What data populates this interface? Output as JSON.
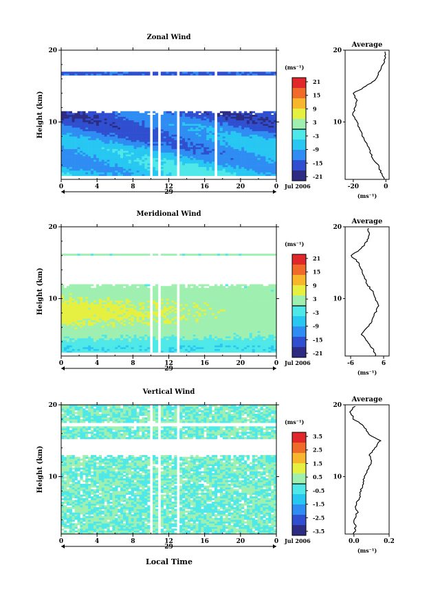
{
  "panels": [
    {
      "title": "Zonal Wind",
      "ylabel": "Height (km)",
      "ytick_labels": [
        "20",
        "10"
      ],
      "xtick_labels": [
        "0",
        "4",
        "8",
        "12",
        "16",
        "20",
        "0"
      ],
      "day_label": "29",
      "date_label": "Jul 2006",
      "unit_label": "(ms⁻¹)",
      "colorbar_ticks": [
        "21",
        "15",
        "9",
        "3",
        "-3",
        "-9",
        "-15",
        "-21"
      ],
      "avg_title": "Average",
      "avg_ytick_labels": [
        "20",
        "10"
      ],
      "avg_xtick_labels": [
        "-20",
        "0"
      ],
      "avg_unit": "(ms⁻¹)"
    },
    {
      "title": "Meridional Wind",
      "ylabel": "Height (km)",
      "ytick_labels": [
        "20",
        "10"
      ],
      "xtick_labels": [
        "0",
        "4",
        "8",
        "12",
        "16",
        "20",
        "0"
      ],
      "day_label": "29",
      "date_label": "Jul 2006",
      "unit_label": "(ms⁻¹)",
      "colorbar_ticks": [
        "21",
        "15",
        "9",
        "3",
        "-3",
        "-9",
        "-15",
        "-21"
      ],
      "avg_title": "Average",
      "avg_ytick_labels": [
        "20",
        "10"
      ],
      "avg_xtick_labels": [
        "-6",
        "6"
      ],
      "avg_unit": "(ms⁻¹)"
    },
    {
      "title": "Vertical Wind",
      "ylabel": "Height (km)",
      "ytick_labels": [
        "20",
        "10"
      ],
      "xtick_labels": [
        "0",
        "4",
        "8",
        "12",
        "16",
        "20",
        "0"
      ],
      "day_label": "29",
      "date_label": "Jul 2006",
      "unit_label": "(ms⁻¹)",
      "colorbar_ticks": [
        "3.5",
        "2.5",
        "1.5",
        "0.5",
        "-0.5",
        "-1.5",
        "-2.5",
        "-3.5"
      ],
      "avg_title": "Average",
      "avg_ytick_labels": [
        "20",
        "10"
      ],
      "avg_xtick_labels": [
        "0.0",
        "0.2"
      ],
      "avg_unit": "(ms⁻¹)"
    }
  ],
  "xlabel": "Local Time",
  "colors": {
    "scale": [
      "#2c2c82",
      "#2f4fd0",
      "#2f8cf2",
      "#27c7f2",
      "#4fe8e8",
      "#9ff0b0",
      "#e6f040",
      "#f7b62c",
      "#f06a2a",
      "#e0282a"
    ]
  },
  "chart_data": [
    {
      "type": "heatmap",
      "title": "Zonal Wind",
      "xlabel": "",
      "ylabel": "Height (km)",
      "x_unit": "local time (h)",
      "xlim": [
        0,
        24
      ],
      "ylim": [
        2,
        20
      ],
      "colorbar_range": [
        -21,
        21
      ],
      "data_gaps_hours": [
        [
          9.8,
          10.3
        ],
        [
          10.9,
          11.1
        ],
        [
          12.8,
          13.1
        ],
        [
          17.0,
          17.3
        ]
      ],
      "profile_heights_km": [
        [
          2.5,
          11.5
        ],
        [
          16.5,
          16.9
        ]
      ],
      "average_profile": {
        "xlim": [
          -25,
          2
        ],
        "heights": [
          2,
          3,
          4,
          5,
          6,
          7,
          8,
          9,
          10,
          11,
          12,
          13,
          14,
          15,
          16,
          17,
          18,
          19,
          20
        ],
        "values": [
          -1,
          -3,
          -5,
          -8,
          -10,
          -12,
          -14,
          -16,
          -18,
          -20,
          -19,
          -18,
          -20,
          -12,
          -6,
          -4,
          -2,
          0,
          -1
        ]
      }
    },
    {
      "type": "heatmap",
      "title": "Meridional Wind",
      "xlabel": "",
      "ylabel": "Height (km)",
      "x_unit": "local time (h)",
      "xlim": [
        0,
        24
      ],
      "ylim": [
        2,
        20
      ],
      "colorbar_range": [
        -21,
        21
      ],
      "data_gaps_hours": [
        [
          9.8,
          10.3
        ],
        [
          10.9,
          11.1
        ],
        [
          12.8,
          13.1
        ]
      ],
      "profile_heights_km": [
        [
          2.5,
          12.0
        ],
        [
          15.8,
          16.2
        ]
      ],
      "average_profile": {
        "xlim": [
          -8,
          8
        ],
        "heights": [
          2,
          3,
          4,
          5,
          6,
          7,
          8,
          9,
          10,
          11,
          12,
          13,
          14,
          15,
          16,
          17,
          18,
          19,
          20
        ],
        "values": [
          3,
          2,
          0,
          -2,
          0,
          2,
          3,
          4,
          3,
          2,
          0,
          -1,
          -2,
          -3,
          -6,
          -2,
          0,
          1,
          0
        ]
      }
    },
    {
      "type": "heatmap",
      "title": "Vertical Wind",
      "xlabel": "Local Time",
      "ylabel": "Height (km)",
      "x_unit": "local time (h)",
      "xlim": [
        0,
        24
      ],
      "ylim": [
        2,
        20
      ],
      "colorbar_range": [
        -3.5,
        3.5
      ],
      "data_gaps_hours": [
        [
          9.8,
          10.3
        ],
        [
          10.9,
          11.1
        ],
        [
          12.8,
          13.1
        ]
      ],
      "profile_heights_km": [
        [
          2.0,
          13.0
        ],
        [
          15.2,
          16.8
        ],
        [
          17.4,
          20.0
        ]
      ],
      "average_profile": {
        "xlim": [
          -0.05,
          0.2
        ],
        "heights": [
          2,
          3,
          4,
          5,
          6,
          7,
          8,
          9,
          10,
          11,
          12,
          13,
          14,
          15,
          16,
          17,
          18,
          19,
          20
        ],
        "values": [
          0.0,
          0.01,
          0.0,
          0.02,
          0.01,
          0.03,
          0.04,
          0.05,
          0.06,
          0.08,
          0.1,
          0.09,
          0.12,
          0.15,
          0.08,
          0.06,
          0.0,
          -0.02,
          0.01
        ]
      }
    }
  ]
}
